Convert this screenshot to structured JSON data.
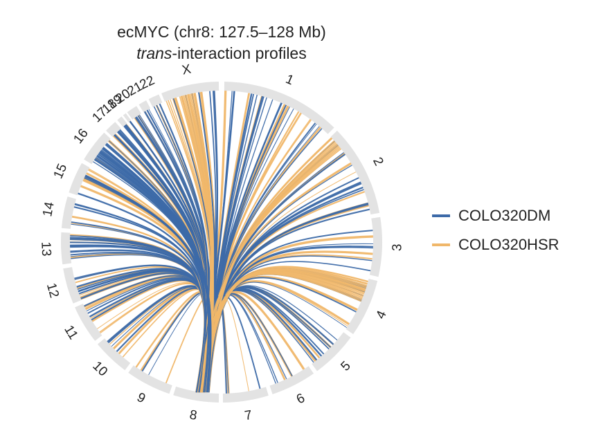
{
  "title": {
    "line1": "ecMYC (chr8: 127.5–128 Mb)",
    "line2_italic": "trans",
    "line2_rest": "-interaction profiles"
  },
  "legend": [
    {
      "label": "COLO320DM",
      "color": "#3d6aa8"
    },
    {
      "label": "COLO320HSR",
      "color": "#f0b76a"
    }
  ],
  "colors": {
    "ring": "#e3e3e3",
    "dm": "#3d6aa8",
    "hsr": "#f0b76a"
  },
  "chromosomes": [
    "1",
    "2",
    "3",
    "4",
    "5",
    "6",
    "7",
    "8",
    "9",
    "10",
    "11",
    "12",
    "13",
    "14",
    "15",
    "16",
    "17",
    "18",
    "19",
    "20",
    "21",
    "22",
    "X"
  ],
  "chord_data": {
    "type": "circos",
    "source_chromosome": "8",
    "source_region": "127.5–128 Mb",
    "series": [
      "COLO320DM",
      "COLO320HSR"
    ]
  }
}
